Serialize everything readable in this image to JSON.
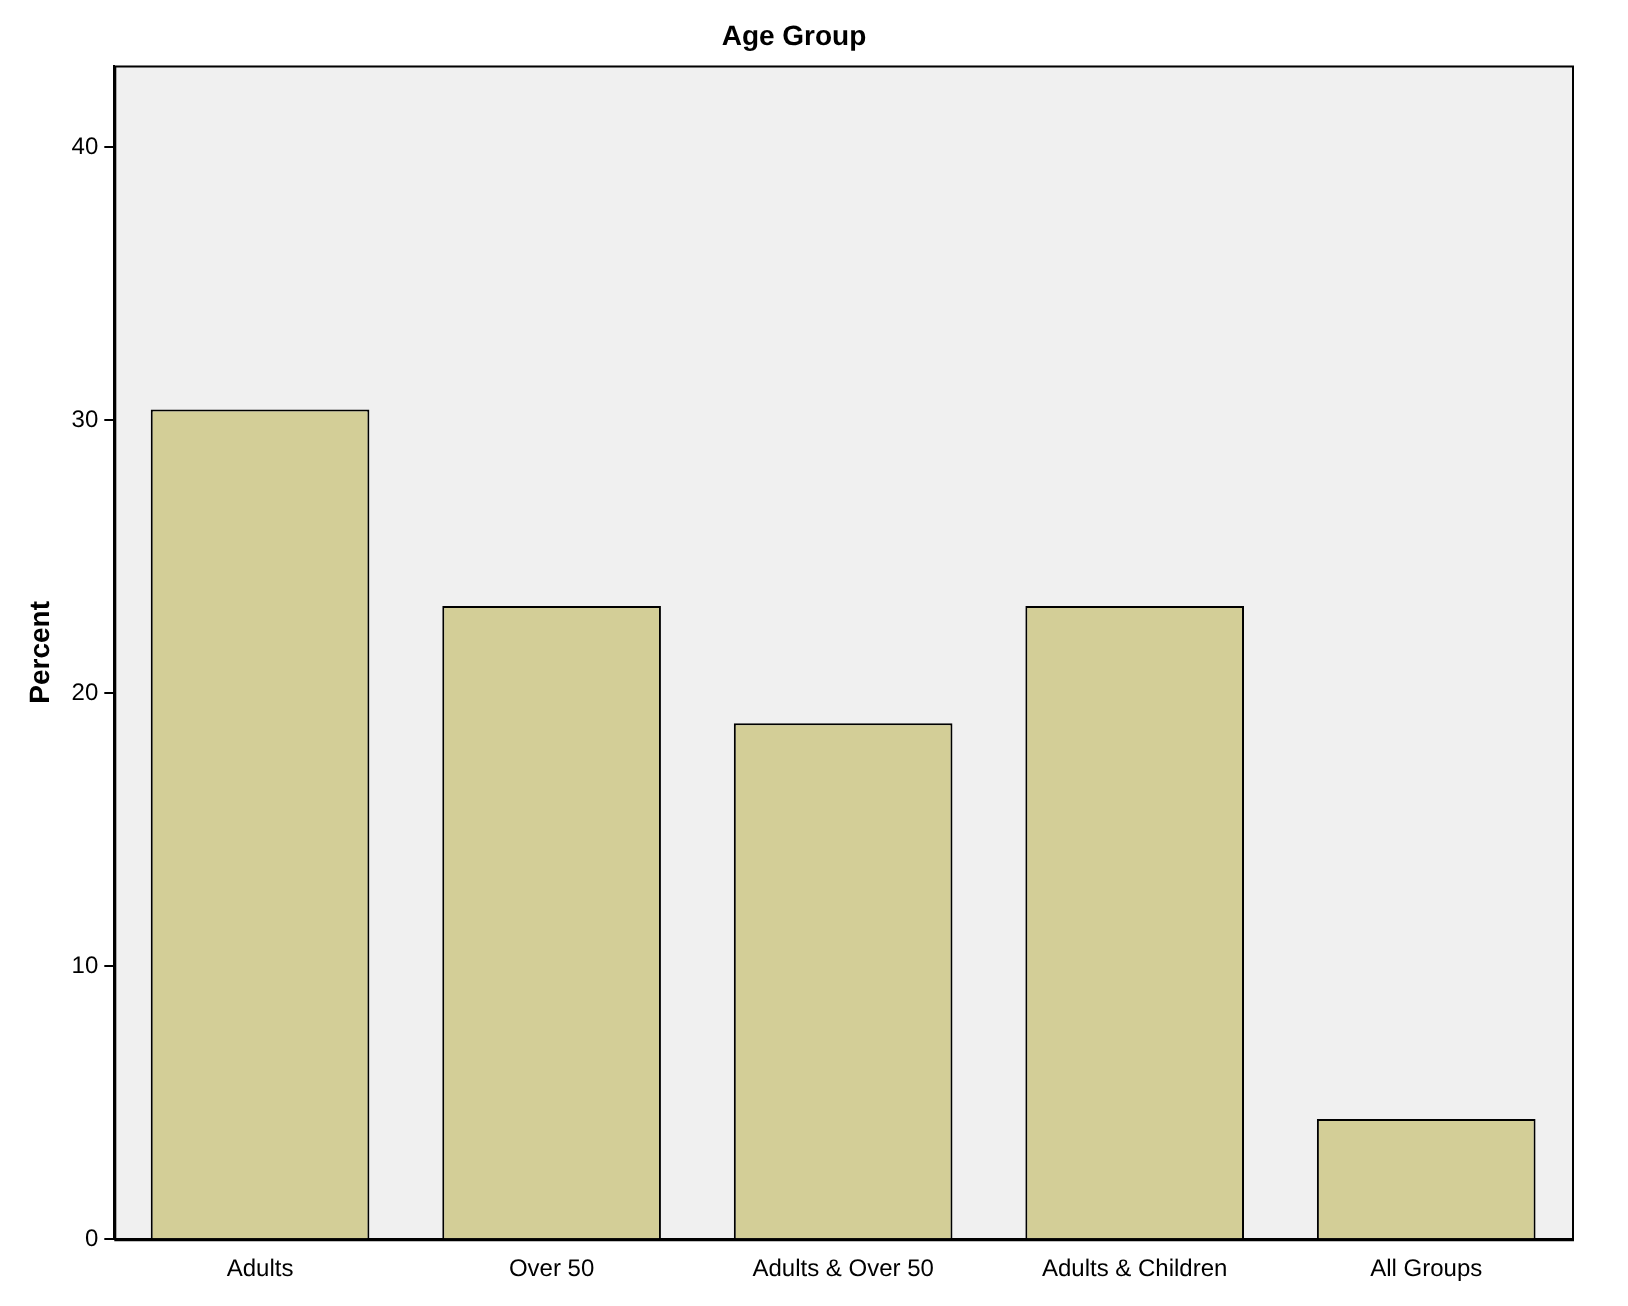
{
  "chart_data": {
    "type": "bar",
    "title": "Age Group",
    "ylabel": "Percent",
    "categories": [
      "Adults",
      "Over 50",
      "Adults & Over 50",
      "Adults & Children",
      "All Groups"
    ],
    "values": [
      30.4,
      23.2,
      18.9,
      23.2,
      4.4
    ],
    "color": "#d3ce97",
    "ylim": [
      0,
      43
    ],
    "yticks": [
      0,
      10,
      20,
      30,
      40
    ],
    "grid": false,
    "legend": false
  }
}
